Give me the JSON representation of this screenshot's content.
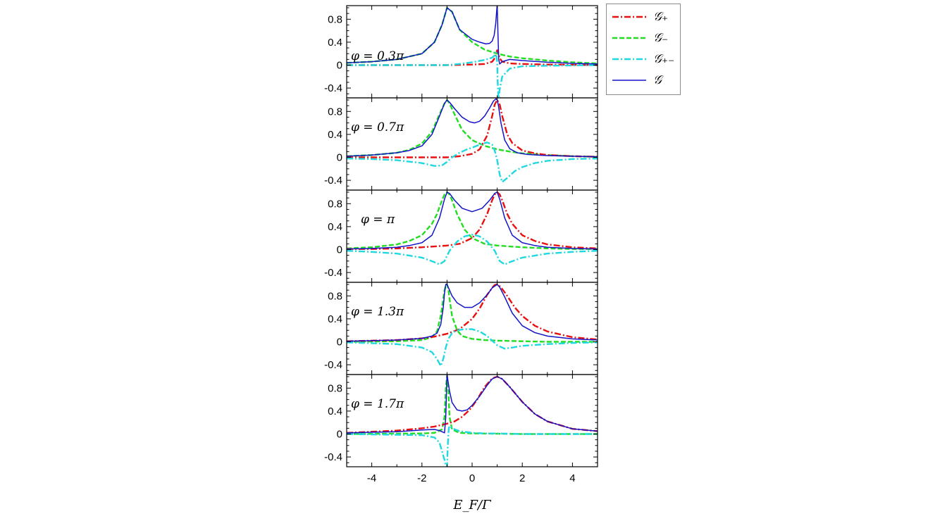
{
  "figure": {
    "xlabel": "E_F/Γ",
    "legend": [
      {
        "label": "𝒢₊",
        "color": "#e81010",
        "dash": "9,3,2,3",
        "width": 2.4
      },
      {
        "label": "𝒢₋",
        "color": "#22dd22",
        "dash": "7,3",
        "width": 2.4
      },
      {
        "label": "𝒢₊₋",
        "color": "#20d8e0",
        "dash": "9,3,2,3",
        "width": 2.4
      },
      {
        "label": "𝒢",
        "color": "#1414c8",
        "dash": "",
        "width": 1.5
      }
    ]
  },
  "chart_data": [
    {
      "type": "line",
      "annotation": "φ = 0.3π",
      "xlabel": "E_F/Γ",
      "xlim": [
        -5,
        5
      ],
      "ylim": [
        -0.6,
        1.05
      ],
      "xticks": [
        "-4",
        "-2",
        "0",
        "2",
        "4"
      ],
      "yticks": [
        "0.8",
        "0.4",
        "0",
        "-0.4"
      ],
      "series": [
        {
          "name": "𝒢₊",
          "x": [
            -5,
            -3,
            -2,
            -1,
            0,
            0.5,
            0.8,
            0.9,
            0.95,
            1.0,
            1.05,
            1.1,
            1.2,
            1.5,
            2,
            3,
            5
          ],
          "y": [
            0.0,
            0.0,
            0.0,
            0.0,
            0.01,
            0.02,
            0.06,
            0.12,
            0.2,
            0.26,
            0.2,
            0.12,
            0.06,
            0.03,
            0.02,
            0.01,
            0.0
          ]
        },
        {
          "name": "𝒢₋",
          "x": [
            -5,
            -4,
            -3,
            -2,
            -1.5,
            -1.2,
            -1,
            -0.8,
            -0.5,
            0,
            0.5,
            1,
            1.5,
            2,
            3,
            4,
            5
          ],
          "y": [
            0.04,
            0.06,
            0.1,
            0.2,
            0.4,
            0.7,
            1.0,
            0.93,
            0.62,
            0.4,
            0.27,
            0.2,
            0.15,
            0.12,
            0.08,
            0.05,
            0.03
          ]
        },
        {
          "name": "𝒢₊₋",
          "x": [
            -5,
            -3,
            -1,
            -0.5,
            0,
            0.5,
            0.8,
            0.9,
            0.95,
            1.0,
            1.02,
            1.05,
            1.1,
            1.2,
            1.5,
            2,
            3,
            5
          ],
          "y": [
            0.0,
            0.0,
            0.0,
            0.02,
            0.05,
            0.09,
            0.13,
            0.17,
            0.22,
            0.05,
            -0.3,
            -0.58,
            -0.42,
            -0.2,
            -0.06,
            -0.02,
            -0.01,
            0.0
          ]
        },
        {
          "name": "𝒢",
          "x": [
            -5,
            -4,
            -3,
            -2,
            -1.5,
            -1.2,
            -1,
            -0.8,
            -0.5,
            0,
            0.3,
            0.55,
            0.7,
            0.8,
            0.88,
            0.94,
            0.98,
            1.0,
            1.03,
            1.06,
            1.1,
            1.2,
            1.5,
            2,
            3,
            4,
            5
          ],
          "y": [
            0.04,
            0.06,
            0.1,
            0.2,
            0.4,
            0.7,
            1.0,
            0.93,
            0.62,
            0.45,
            0.4,
            0.37,
            0.38,
            0.42,
            0.52,
            0.72,
            0.95,
            1.05,
            0.55,
            0.1,
            0.02,
            0.06,
            0.1,
            0.08,
            0.05,
            0.03,
            0.02
          ]
        }
      ]
    },
    {
      "type": "line",
      "annotation": "φ = 0.7π",
      "xlabel": "E_F/Γ",
      "xlim": [
        -5,
        5
      ],
      "ylim": [
        -0.6,
        1.05
      ],
      "xticks": [
        "-4",
        "-2",
        "0",
        "2",
        "4"
      ],
      "yticks": [
        "0.8",
        "0.4",
        "0",
        "-0.4"
      ],
      "series": [
        {
          "name": "𝒢₊",
          "x": [
            -5,
            -3,
            -2,
            -1,
            -0.5,
            0,
            0.3,
            0.6,
            0.8,
            0.9,
            1.0,
            1.1,
            1.2,
            1.4,
            1.6,
            2,
            2.5,
            3,
            4,
            5
          ],
          "y": [
            0.0,
            0.0,
            0.0,
            0.0,
            0.02,
            0.06,
            0.14,
            0.38,
            0.72,
            0.92,
            1.0,
            0.92,
            0.72,
            0.4,
            0.25,
            0.12,
            0.07,
            0.04,
            0.02,
            0.01
          ]
        },
        {
          "name": "𝒢₋",
          "x": [
            -5,
            -4,
            -3,
            -2.5,
            -2,
            -1.6,
            -1.3,
            -1.1,
            -1,
            -0.9,
            -0.7,
            -0.4,
            0,
            0.5,
            1,
            1.5,
            2,
            3,
            4,
            5
          ],
          "y": [
            0.02,
            0.04,
            0.08,
            0.13,
            0.24,
            0.45,
            0.75,
            0.94,
            1.0,
            0.94,
            0.75,
            0.48,
            0.3,
            0.2,
            0.14,
            0.1,
            0.07,
            0.04,
            0.02,
            0.01
          ]
        },
        {
          "name": "𝒢₊₋",
          "x": [
            -5,
            -4,
            -3,
            -2,
            -1.5,
            -1.2,
            -1,
            -0.8,
            -0.5,
            -0.2,
            0,
            0.3,
            0.6,
            0.8,
            0.9,
            1.0,
            1.1,
            1.2,
            1.4,
            1.7,
            2,
            2.5,
            3,
            4,
            5
          ],
          "y": [
            -0.02,
            -0.03,
            -0.05,
            -0.1,
            -0.15,
            -0.14,
            -0.08,
            0.0,
            0.08,
            0.14,
            0.17,
            0.22,
            0.26,
            0.22,
            0.12,
            -0.05,
            -0.3,
            -0.43,
            -0.36,
            -0.24,
            -0.17,
            -0.1,
            -0.06,
            -0.03,
            -0.02
          ]
        },
        {
          "name": "𝒢",
          "x": [
            -5,
            -4,
            -3,
            -2.5,
            -2,
            -1.6,
            -1.3,
            -1.1,
            -1,
            -0.9,
            -0.7,
            -0.4,
            -0.1,
            0.1,
            0.3,
            0.5,
            0.7,
            0.85,
            0.95,
            1.0,
            1.05,
            1.15,
            1.3,
            1.5,
            1.8,
            2.2,
            3,
            4,
            5
          ],
          "y": [
            0.02,
            0.04,
            0.08,
            0.12,
            0.2,
            0.4,
            0.72,
            0.94,
            1.0,
            0.96,
            0.85,
            0.7,
            0.62,
            0.6,
            0.63,
            0.72,
            0.86,
            0.98,
            1.02,
            1.0,
            0.9,
            0.6,
            0.3,
            0.15,
            0.08,
            0.05,
            0.03,
            0.02,
            0.01
          ]
        }
      ]
    },
    {
      "type": "line",
      "annotation": "φ = π",
      "xlabel": "E_F/Γ",
      "xlim": [
        -5,
        5
      ],
      "ylim": [
        -0.6,
        1.05
      ],
      "xticks": [
        "-4",
        "-2",
        "0",
        "2",
        "4"
      ],
      "yticks": [
        "0.8",
        "0.4",
        "0",
        "-0.4"
      ],
      "series": [
        {
          "name": "𝒢₊",
          "x": [
            -5,
            -4,
            -3,
            -2,
            -1,
            -0.5,
            0,
            0.3,
            0.6,
            0.8,
            0.9,
            1.0,
            1.1,
            1.2,
            1.4,
            1.6,
            2,
            2.5,
            3,
            4,
            5
          ],
          "y": [
            0.01,
            0.01,
            0.02,
            0.04,
            0.07,
            0.1,
            0.2,
            0.35,
            0.62,
            0.86,
            0.96,
            1.0,
            0.96,
            0.86,
            0.62,
            0.45,
            0.25,
            0.15,
            0.09,
            0.04,
            0.02
          ]
        },
        {
          "name": "𝒢₋",
          "x": [
            -5,
            -4,
            -3,
            -2.5,
            -2,
            -1.6,
            -1.4,
            -1.2,
            -1.1,
            -1,
            -0.9,
            -0.8,
            -0.6,
            -0.3,
            0,
            0.5,
            1,
            2,
            3,
            4,
            5
          ],
          "y": [
            0.02,
            0.04,
            0.09,
            0.15,
            0.25,
            0.45,
            0.62,
            0.86,
            0.96,
            1.0,
            0.96,
            0.86,
            0.62,
            0.35,
            0.2,
            0.1,
            0.07,
            0.04,
            0.02,
            0.01,
            0.01
          ]
        },
        {
          "name": "𝒢₊₋",
          "x": [
            -5,
            -4,
            -3,
            -2,
            -1.5,
            -1.3,
            -1.1,
            -0.9,
            -0.6,
            -0.3,
            0,
            0.3,
            0.6,
            0.9,
            1.1,
            1.3,
            1.5,
            2,
            3,
            4,
            5
          ],
          "y": [
            -0.02,
            -0.04,
            -0.07,
            -0.14,
            -0.22,
            -0.26,
            -0.2,
            -0.02,
            0.14,
            0.23,
            0.26,
            0.23,
            0.14,
            -0.02,
            -0.2,
            -0.26,
            -0.22,
            -0.14,
            -0.07,
            -0.04,
            -0.02
          ]
        },
        {
          "name": "𝒢",
          "x": [
            -5,
            -4,
            -3,
            -2.5,
            -2,
            -1.6,
            -1.3,
            -1.1,
            -1,
            -0.9,
            -0.7,
            -0.4,
            0,
            0.4,
            0.7,
            0.9,
            1.0,
            1.1,
            1.3,
            1.6,
            2,
            2.5,
            3,
            4,
            5
          ],
          "y": [
            0.01,
            0.02,
            0.04,
            0.07,
            0.12,
            0.25,
            0.55,
            0.88,
            1.0,
            0.98,
            0.86,
            0.72,
            0.66,
            0.72,
            0.86,
            0.98,
            1.0,
            0.88,
            0.55,
            0.25,
            0.12,
            0.07,
            0.04,
            0.02,
            0.01
          ]
        }
      ]
    },
    {
      "type": "line",
      "annotation": "φ = 1.3π",
      "xlabel": "E_F/Γ",
      "xlim": [
        -5,
        5
      ],
      "ylim": [
        -0.6,
        1.05
      ],
      "xticks": [
        "-4",
        "-2",
        "0",
        "2",
        "4"
      ],
      "yticks": [
        "0.8",
        "0.4",
        "0",
        "-0.4"
      ],
      "series": [
        {
          "name": "𝒢₊",
          "x": [
            -5,
            -4,
            -3,
            -2,
            -1.5,
            -1,
            -0.5,
            0,
            0.3,
            0.6,
            0.8,
            0.9,
            1.0,
            1.1,
            1.2,
            1.4,
            1.7,
            2,
            2.5,
            3,
            4,
            5
          ],
          "y": [
            0.01,
            0.02,
            0.03,
            0.06,
            0.09,
            0.14,
            0.22,
            0.4,
            0.58,
            0.82,
            0.94,
            0.99,
            1.0,
            0.97,
            0.92,
            0.8,
            0.6,
            0.45,
            0.28,
            0.18,
            0.08,
            0.04
          ]
        },
        {
          "name": "𝒢₋",
          "x": [
            -5,
            -3,
            -2,
            -1.6,
            -1.4,
            -1.25,
            -1.15,
            -1.1,
            -1.05,
            -1.0,
            -0.95,
            -0.9,
            -0.8,
            -0.6,
            -0.4,
            0,
            0.5,
            1,
            2,
            3,
            5
          ],
          "y": [
            0.0,
            0.01,
            0.03,
            0.08,
            0.18,
            0.45,
            0.75,
            0.9,
            0.98,
            1.0,
            0.92,
            0.75,
            0.45,
            0.2,
            0.1,
            0.05,
            0.03,
            0.02,
            0.01,
            0.0,
            0.0
          ]
        },
        {
          "name": "𝒢₊₋",
          "x": [
            -5,
            -3,
            -2,
            -1.6,
            -1.4,
            -1.25,
            -1.15,
            -1.05,
            -0.95,
            -0.8,
            -0.6,
            -0.3,
            0,
            0.3,
            0.6,
            1.0,
            1.3,
            1.6,
            2,
            3,
            4,
            5
          ],
          "y": [
            -0.01,
            -0.04,
            -0.1,
            -0.18,
            -0.3,
            -0.42,
            -0.3,
            -0.1,
            0.05,
            0.15,
            0.2,
            0.22,
            0.22,
            0.18,
            0.1,
            -0.06,
            -0.12,
            -0.1,
            -0.07,
            -0.04,
            -0.02,
            -0.01
          ]
        },
        {
          "name": "𝒢",
          "x": [
            -5,
            -4,
            -3,
            -2,
            -1.6,
            -1.4,
            -1.25,
            -1.15,
            -1.1,
            -1.05,
            -1.0,
            -0.95,
            -0.8,
            -0.6,
            -0.3,
            0,
            0.3,
            0.6,
            0.8,
            1.0,
            1.1,
            1.3,
            1.6,
            2,
            2.5,
            3,
            4,
            5
          ],
          "y": [
            0.01,
            0.02,
            0.03,
            0.06,
            0.1,
            0.15,
            0.3,
            0.6,
            0.85,
            1.0,
            1.0,
            0.95,
            0.8,
            0.68,
            0.6,
            0.6,
            0.68,
            0.82,
            0.94,
            1.0,
            0.95,
            0.78,
            0.5,
            0.28,
            0.16,
            0.1,
            0.05,
            0.03
          ]
        }
      ]
    },
    {
      "type": "line",
      "annotation": "φ = 1.7π",
      "xlabel": "E_F/Γ",
      "xlim": [
        -5,
        5
      ],
      "ylim": [
        -0.6,
        1.05
      ],
      "xticks": [
        "-4",
        "-2",
        "0",
        "2",
        "4"
      ],
      "yticks": [
        "0.8",
        "0.4",
        "0",
        "-0.4"
      ],
      "series": [
        {
          "name": "𝒢₊",
          "x": [
            -5,
            -4,
            -3,
            -2,
            -1.5,
            -1,
            -0.7,
            -0.4,
            -0.1,
            0.2,
            0.5,
            0.8,
            1.0,
            1.2,
            1.5,
            2,
            2.5,
            3,
            4,
            5
          ],
          "y": [
            0.02,
            0.04,
            0.06,
            0.1,
            0.13,
            0.18,
            0.22,
            0.3,
            0.42,
            0.6,
            0.82,
            0.97,
            1.0,
            0.96,
            0.82,
            0.56,
            0.35,
            0.22,
            0.09,
            0.05
          ]
        },
        {
          "name": "𝒢₋",
          "x": [
            -5,
            -2,
            -1.5,
            -1.2,
            -1.1,
            -1.05,
            -1.0,
            -0.95,
            -0.9,
            -0.8,
            -0.5,
            0,
            2,
            5
          ],
          "y": [
            0.0,
            0.01,
            0.02,
            0.08,
            0.3,
            0.8,
            1.0,
            0.8,
            0.3,
            0.08,
            0.02,
            0.01,
            0.0,
            0.0
          ]
        },
        {
          "name": "𝒢₊₋",
          "x": [
            -5,
            -2,
            -1.5,
            -1.3,
            -1.2,
            -1.1,
            -1.05,
            -1.0,
            -0.97,
            -0.93,
            -0.9,
            -0.85,
            -0.75,
            -0.5,
            0,
            0.5,
            1,
            2,
            5
          ],
          "y": [
            0.0,
            -0.02,
            -0.06,
            -0.15,
            -0.3,
            -0.45,
            -0.55,
            -0.58,
            -0.2,
            0.1,
            0.14,
            0.12,
            0.09,
            0.05,
            0.02,
            0.01,
            0.01,
            0.0,
            0.0
          ]
        },
        {
          "name": "𝒢",
          "x": [
            -5,
            -4,
            -3,
            -2,
            -1.5,
            -1.3,
            -1.2,
            -1.1,
            -1.05,
            -1.0,
            -0.97,
            -0.9,
            -0.8,
            -0.6,
            -0.4,
            -0.2,
            0,
            0.3,
            0.6,
            0.8,
            1.0,
            1.2,
            1.5,
            2,
            2.5,
            3,
            4,
            5
          ],
          "y": [
            0.02,
            0.03,
            0.04,
            0.07,
            0.08,
            0.06,
            0.04,
            0.02,
            0.3,
            1.05,
            0.95,
            0.75,
            0.55,
            0.42,
            0.4,
            0.42,
            0.5,
            0.66,
            0.85,
            0.96,
            1.0,
            0.96,
            0.82,
            0.56,
            0.35,
            0.22,
            0.09,
            0.05
          ]
        }
      ]
    }
  ]
}
